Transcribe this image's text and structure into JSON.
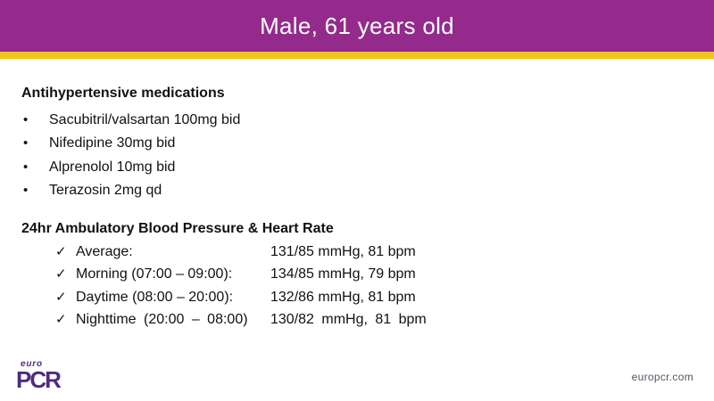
{
  "slide": {
    "title": "Male, 61 years old",
    "medications": {
      "heading": "Antihypertensive medications",
      "bullet_char": "•",
      "items": [
        "Sacubitril/valsartan 100mg bid",
        "Nifedipine 30mg bid",
        "Alprenolol 10mg bid",
        "Terazosin 2mg qd"
      ]
    },
    "bp": {
      "heading": "24hr Ambulatory Blood Pressure & Heart Rate",
      "check_char": "✓",
      "rows": [
        {
          "label": "Average:",
          "value": "131/85 mmHg, 81 bpm"
        },
        {
          "label": "Morning (07:00 – 09:00):",
          "value": "134/85 mmHg, 79 bpm"
        },
        {
          "label": "Daytime (08:00 – 20:00):",
          "value": "132/86 mmHg, 81 bpm"
        },
        {
          "label": "Nighttime (20:00 – 08:00)",
          "value": "130/82 mmHg, 81 bpm"
        }
      ]
    },
    "footer": {
      "logo_euro": "euro",
      "logo_pcr": "PCR",
      "website": "europcr.com"
    },
    "colors": {
      "header_purple": "#942A8C",
      "accent_yellow": "#F0C419",
      "logo_purple": "#4F2C82",
      "website_text": "#5A5364"
    }
  }
}
